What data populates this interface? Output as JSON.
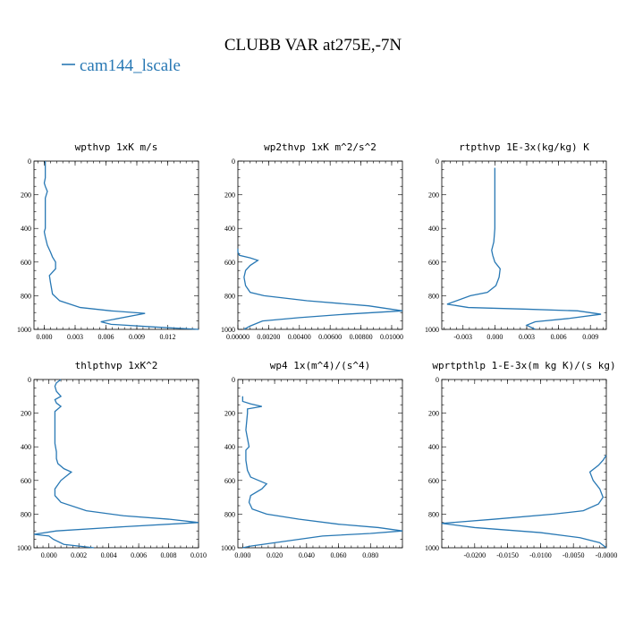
{
  "title": "CLUBB VAR at275E,-7N",
  "legend": {
    "label": "cam144_lscale",
    "color": "#2878b4"
  },
  "chart_data": [
    {
      "type": "line",
      "title": "wpthvp   1xK m/s",
      "xlim": [
        -0.001,
        0.015
      ],
      "ylim": [
        1000,
        0
      ],
      "xticks": [
        0.0,
        0.003,
        0.006,
        0.009,
        0.012
      ],
      "xtick_labels": [
        "0.000",
        "0.003",
        "0.006",
        "0.009",
        "0.012"
      ],
      "yticks": [
        0,
        200,
        400,
        600,
        800,
        1000
      ],
      "series": [
        {
          "x": [
            0.0001,
            0.0001,
            0.0001,
            0.0,
            0.0001,
            0.0003,
            0.0001,
            0.0001,
            0.0001,
            0.0001,
            0.0001,
            0.0,
            0.0001,
            0.0003,
            0.0006,
            0.0008,
            0.0011,
            0.0011,
            0.0005,
            0.0006,
            0.0008,
            0.0015,
            0.0035,
            0.0065,
            0.0098,
            0.0055,
            0.0065,
            0.0105,
            0.015
          ],
          "y": [
            0,
            50,
            100,
            130,
            150,
            180,
            220,
            280,
            320,
            360,
            400,
            420,
            450,
            500,
            540,
            570,
            600,
            640,
            680,
            720,
            790,
            830,
            870,
            890,
            905,
            955,
            970,
            985,
            1000
          ]
        }
      ]
    },
    {
      "type": "line",
      "title": "wp2thvp   1xK m^2/s^2",
      "xlim": [
        0.0,
        0.0107
      ],
      "ylim": [
        1000,
        0
      ],
      "xticks": [
        0.0,
        0.002,
        0.004,
        0.006,
        0.008,
        0.01
      ],
      "xtick_labels": [
        "0.00000",
        "0.00200",
        "0.00400",
        "0.00600",
        "0.00800",
        "0.01000"
      ],
      "yticks": [
        0,
        200,
        400,
        600,
        800,
        1000
      ],
      "series": [
        {
          "x": [
            0.0,
            0.0,
            0.0001,
            0.0008,
            0.0013,
            0.0008,
            0.0005,
            0.0004,
            0.0005,
            0.0008,
            0.0017,
            0.0045,
            0.0085,
            0.0107,
            0.007,
            0.004,
            0.0016,
            0.0008,
            0.0004
          ],
          "y": [
            520,
            540,
            560,
            575,
            590,
            620,
            650,
            690,
            740,
            780,
            800,
            830,
            860,
            890,
            910,
            930,
            950,
            980,
            1000
          ]
        }
      ]
    },
    {
      "type": "line",
      "title": "rtpthvp   1E-3x(kg/kg) K",
      "xlim": [
        -0.005,
        0.0105
      ],
      "ylim": [
        1000,
        0
      ],
      "xticks": [
        -0.003,
        0.0,
        0.003,
        0.006,
        0.009
      ],
      "xtick_labels": [
        "-0.003",
        "0.000",
        "0.003",
        "0.006",
        "0.009"
      ],
      "yticks": [
        0,
        200,
        400,
        600,
        800,
        1000
      ],
      "series": [
        {
          "x": [
            0.0,
            0.0,
            0.0,
            -0.0001,
            -0.0003,
            -0.0002,
            0.0,
            0.0005,
            0.0004,
            0.0001,
            -0.0007,
            -0.0023,
            -0.0045,
            -0.0025,
            0.003,
            0.0078,
            0.01,
            0.007,
            0.0038,
            0.003,
            0.0038
          ],
          "y": [
            40,
            200,
            400,
            480,
            530,
            560,
            600,
            640,
            690,
            740,
            780,
            800,
            850,
            870,
            880,
            890,
            910,
            935,
            955,
            975,
            1000
          ]
        }
      ]
    },
    {
      "type": "line",
      "title": "thlpthvp   1xK^2",
      "xlim": [
        -0.001,
        0.01
      ],
      "ylim": [
        1000,
        0
      ],
      "xticks": [
        0.0,
        0.002,
        0.004,
        0.006,
        0.008,
        0.01
      ],
      "xtick_labels": [
        "0.000",
        "0.002",
        "0.004",
        "0.006",
        "0.008",
        "0.010"
      ],
      "yticks": [
        0,
        200,
        400,
        600,
        800,
        1000
      ],
      "series": [
        {
          "x": [
            0.0008,
            0.0005,
            0.0004,
            0.0005,
            0.0008,
            0.0004,
            0.0005,
            0.0008,
            0.0004,
            0.0004,
            0.0004,
            0.0004,
            0.0004,
            0.0005,
            0.0005,
            0.0006,
            0.001,
            0.0015,
            0.0008,
            0.0004,
            0.0004,
            0.0008,
            0.0025,
            0.005,
            0.008,
            0.01,
            0.005,
            0.0005,
            -0.001,
            0.0,
            0.0003,
            0.001,
            0.003
          ],
          "y": [
            0,
            20,
            40,
            70,
            100,
            120,
            140,
            160,
            190,
            230,
            280,
            330,
            380,
            430,
            470,
            500,
            530,
            550,
            600,
            650,
            690,
            730,
            780,
            810,
            830,
            850,
            875,
            900,
            920,
            930,
            950,
            980,
            1000
          ]
        }
      ]
    },
    {
      "type": "line",
      "title": "wp4   1x(m^4)/(s^4)",
      "xlim": [
        -0.003,
        0.1
      ],
      "ylim": [
        1000,
        0
      ],
      "xticks": [
        0.0,
        0.02,
        0.04,
        0.06,
        0.08
      ],
      "xtick_labels": [
        "0.000",
        "0.020",
        "0.040",
        "0.060",
        "0.080"
      ],
      "yticks": [
        0,
        200,
        400,
        600,
        800,
        1000
      ],
      "series": [
        {
          "x": [
            0.0,
            0.0,
            0.005,
            0.012,
            0.003,
            0.003,
            0.002,
            0.004,
            0.002,
            0.002,
            0.003,
            0.005,
            0.01,
            0.015,
            0.012,
            0.005,
            0.004,
            0.006,
            0.015,
            0.035,
            0.06,
            0.085,
            0.1,
            0.08,
            0.05,
            0.035,
            0.02,
            0.005,
            0.0
          ],
          "y": [
            100,
            130,
            145,
            160,
            175,
            200,
            300,
            400,
            420,
            480,
            540,
            580,
            600,
            620,
            650,
            690,
            730,
            770,
            800,
            830,
            860,
            880,
            900,
            915,
            930,
            950,
            970,
            990,
            1000
          ]
        }
      ]
    },
    {
      "type": "line",
      "title": "wprtpthlp   1-E-3x(m kg K)/(s kg)",
      "xlim": [
        -0.025,
        0.0
      ],
      "ylim": [
        1000,
        0
      ],
      "xticks": [
        -0.02,
        -0.015,
        -0.01,
        -0.005,
        0.0
      ],
      "xtick_labels": [
        "-0.0200",
        "-0.0150",
        "-0.0100",
        "-0.0050",
        "-0.0000"
      ],
      "yticks": [
        0,
        200,
        400,
        600,
        800,
        1000
      ],
      "series": [
        {
          "x": [
            0.0,
            -0.0005,
            -0.0012,
            -0.0025,
            -0.002,
            -0.001,
            -0.0005,
            -0.0012,
            -0.0035,
            -0.008,
            -0.017,
            -0.025,
            -0.02,
            -0.01,
            -0.004,
            -0.001,
            0.0
          ],
          "y": [
            450,
            480,
            510,
            550,
            600,
            650,
            700,
            740,
            780,
            800,
            830,
            855,
            880,
            910,
            940,
            970,
            1000
          ]
        }
      ]
    }
  ]
}
